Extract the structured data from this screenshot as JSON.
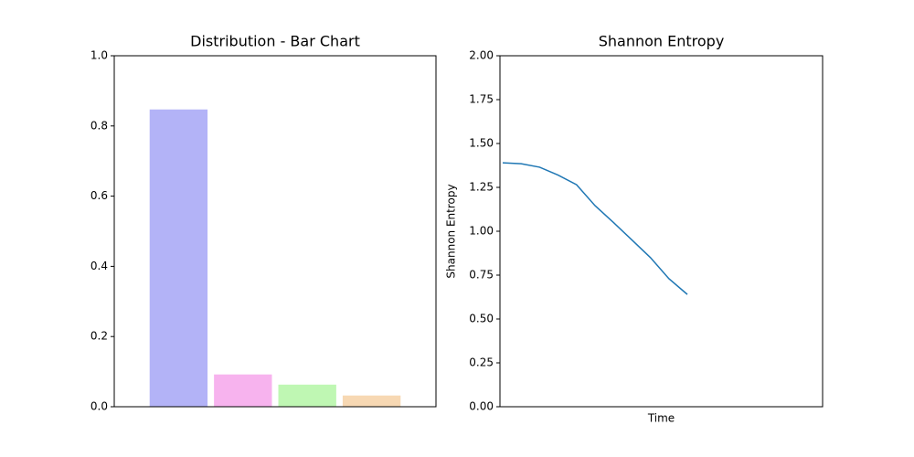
{
  "charts": [
    {
      "chart_data": {
        "type": "bar",
        "title": "Distribution - Bar Chart",
        "categories": [
          null,
          null,
          null,
          null
        ],
        "values": [
          0.847,
          0.092,
          0.063,
          0.032
        ],
        "colors": [
          "#b3b3f7",
          "#f7b3ee",
          "#bff7b3",
          "#f7d8b3"
        ],
        "ylim": [
          0,
          1
        ],
        "yticks": [
          {
            "value": 0,
            "label": "0.0"
          },
          0.2,
          0.4,
          0.6,
          0.8,
          {
            "value": 1,
            "label": "1.0"
          }
        ]
      }
    },
    {
      "chart_data": {
        "type": "line",
        "title": "Shannon Entropy",
        "xlabel": "Time",
        "ylabel": "Shannon Entropy",
        "series": [
          {
            "name": "Shannon Entropy",
            "color": "#1f77b4",
            "values": [
              1.39,
              1.385,
              1.365,
              1.32,
              1.265,
              1.146,
              1.05,
              0.95,
              0.85,
              0.73,
              0.64
            ]
          }
        ],
        "ylim": [
          0,
          2
        ],
        "yticks": [
          {
            "value": 0,
            "label": "0.00"
          },
          {
            "value": 0.25,
            "label": "0.25"
          },
          {
            "value": 0.5,
            "label": "0.50"
          },
          {
            "value": 0.75,
            "label": "0.75"
          },
          {
            "value": 1,
            "label": "1.00"
          },
          {
            "value": 1.25,
            "label": "1.25"
          },
          {
            "value": 1.5,
            "label": "1.50"
          },
          {
            "value": 1.75,
            "label": "1.75"
          },
          {
            "value": 2,
            "label": "2.00"
          }
        ]
      }
    }
  ]
}
